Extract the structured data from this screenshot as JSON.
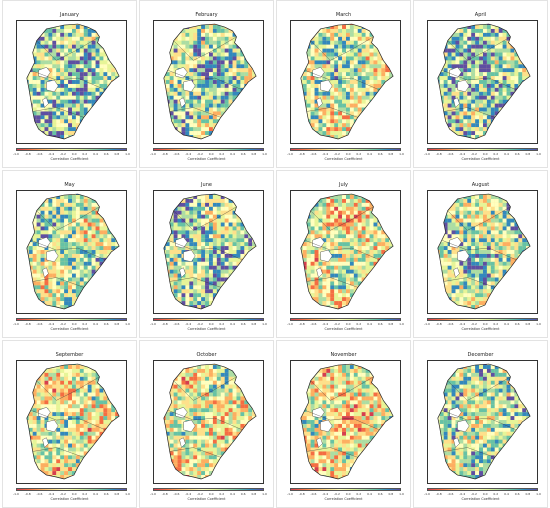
{
  "months": [
    "January",
    "February",
    "March",
    "April",
    "May",
    "June",
    "July",
    "August",
    "September",
    "October",
    "November",
    "December"
  ],
  "colorbar": {
    "label": "Correlation Coefficient",
    "ticks": [
      "-1.0",
      "-0.8",
      "-0.6",
      "-0.4",
      "-0.2",
      "0.0",
      "0.2",
      "0.4",
      "0.6",
      "0.8",
      "1.0"
    ],
    "colors": [
      "#d53e4f",
      "#f46d43",
      "#fdae61",
      "#fee08b",
      "#ffffbf",
      "#e6f598",
      "#abdda4",
      "#66c2a5",
      "#3288bd",
      "#5e4fa2"
    ]
  },
  "panels": [
    {
      "month": "January",
      "bias": 0.35
    },
    {
      "month": "February",
      "bias": 0.25
    },
    {
      "month": "March",
      "bias": 0.1
    },
    {
      "month": "April",
      "bias": 0.35
    },
    {
      "month": "May",
      "bias": 0.15
    },
    {
      "month": "June",
      "bias": 0.3
    },
    {
      "month": "July",
      "bias": -0.05
    },
    {
      "month": "August",
      "bias": 0.2
    },
    {
      "month": "September",
      "bias": 0.0
    },
    {
      "month": "October",
      "bias": -0.05
    },
    {
      "month": "November",
      "bias": -0.1
    },
    {
      "month": "December",
      "bias": 0.15
    }
  ]
}
